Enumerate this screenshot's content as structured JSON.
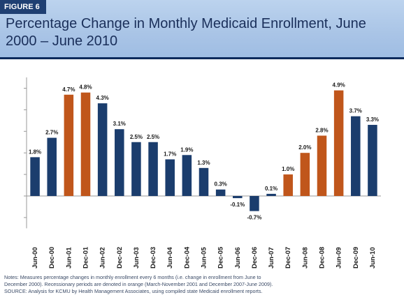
{
  "figure_label": "FIGURE 6",
  "title": "Percentage Change in Monthly Medicaid Enrollment, June 2000 – June 2010",
  "notes": [
    "Notes: Measures percentage changes in monthly enrollment every 6 months (i.e. change in enrollment from June to",
    "December 2000).  Recessionary periods are denoted in orange (March-November 2001 and December 2007-June 2009).",
    "SOURCE: Analysis for KCMU by Health Management Associates, using compiled state Medicaid enrollment reports."
  ],
  "colors": {
    "normal": "#1b3d6d",
    "recession": "#c0561b",
    "header": "#a9c4e6",
    "title_text": "#1a2f5a"
  },
  "chart_data": {
    "type": "bar",
    "title": "Percentage Change in Monthly Medicaid Enrollment, June 2000 – June 2010",
    "xlabel": "",
    "ylabel": "",
    "ylim": [
      -1.5,
      5.0
    ],
    "grid": false,
    "categories": [
      "Jun-00",
      "Dec-00",
      "Jun-01",
      "Dec-01",
      "Jun-02",
      "Dec-02",
      "Jun-03",
      "Dec-03",
      "Jun-04",
      "Dec-04",
      "Jun-05",
      "Dec-05",
      "Jun-06",
      "Dec-06",
      "Jun-07",
      "Dec-07",
      "Jun-08",
      "Dec-08",
      "Jun-09",
      "Dec-09",
      "Jun-10"
    ],
    "values": [
      1.8,
      2.7,
      4.7,
      4.8,
      4.3,
      3.1,
      2.5,
      2.5,
      1.7,
      1.9,
      1.3,
      0.3,
      -0.1,
      -0.7,
      0.1,
      1.0,
      2.0,
      2.8,
      4.9,
      3.7,
      3.3
    ],
    "data_labels": [
      "1.8%",
      "2.7%",
      "4.7%",
      "4.8%",
      "4.3%",
      "3.1%",
      "2.5%",
      "2.5%",
      "1.7%",
      "1.9%",
      "1.3%",
      "0.3%",
      "-0.1%",
      "-0.7%",
      "0.1%",
      "1.0%",
      "2.0%",
      "2.8%",
      "4.9%",
      "3.7%",
      "3.3%"
    ],
    "recession": [
      false,
      false,
      true,
      true,
      false,
      false,
      false,
      false,
      false,
      false,
      false,
      false,
      false,
      false,
      false,
      true,
      true,
      true,
      true,
      false,
      false
    ]
  }
}
